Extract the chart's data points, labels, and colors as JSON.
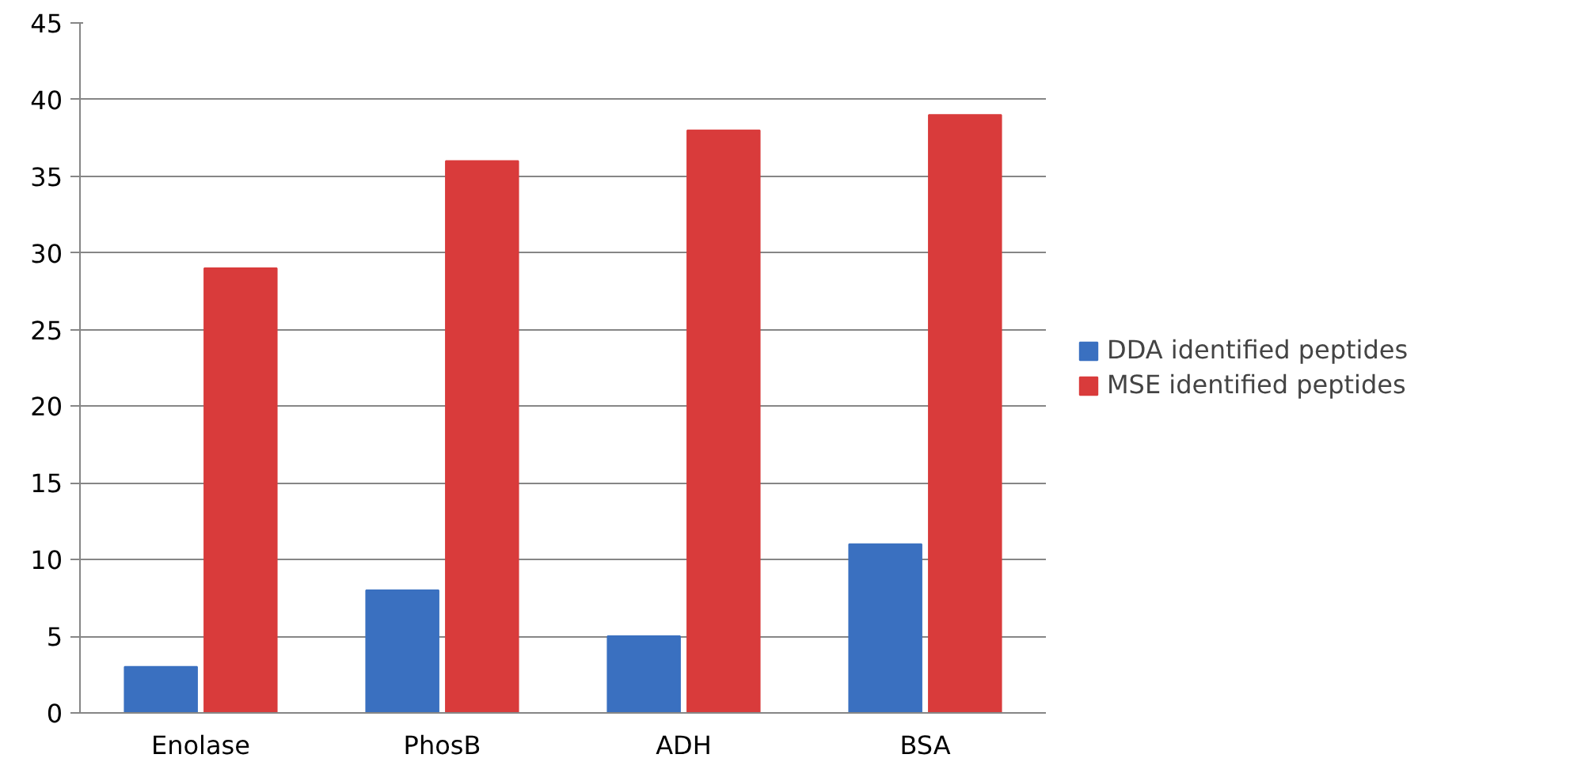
{
  "chart_data": {
    "type": "bar",
    "categories": [
      "Enolase",
      "PhosB",
      "ADH",
      "BSA"
    ],
    "series": [
      {
        "name": "DDA identified peptides",
        "color": "#3a70c0",
        "values": [
          3,
          8,
          5,
          11
        ]
      },
      {
        "name": "MSE identified peptides",
        "color": "#d93b3b",
        "values": [
          29,
          36,
          38,
          39
        ]
      }
    ],
    "ylim": [
      0,
      45
    ],
    "yticks": [
      0,
      5,
      10,
      15,
      20,
      25,
      30,
      35,
      40,
      45
    ],
    "grid": "y",
    "legend": "right"
  }
}
